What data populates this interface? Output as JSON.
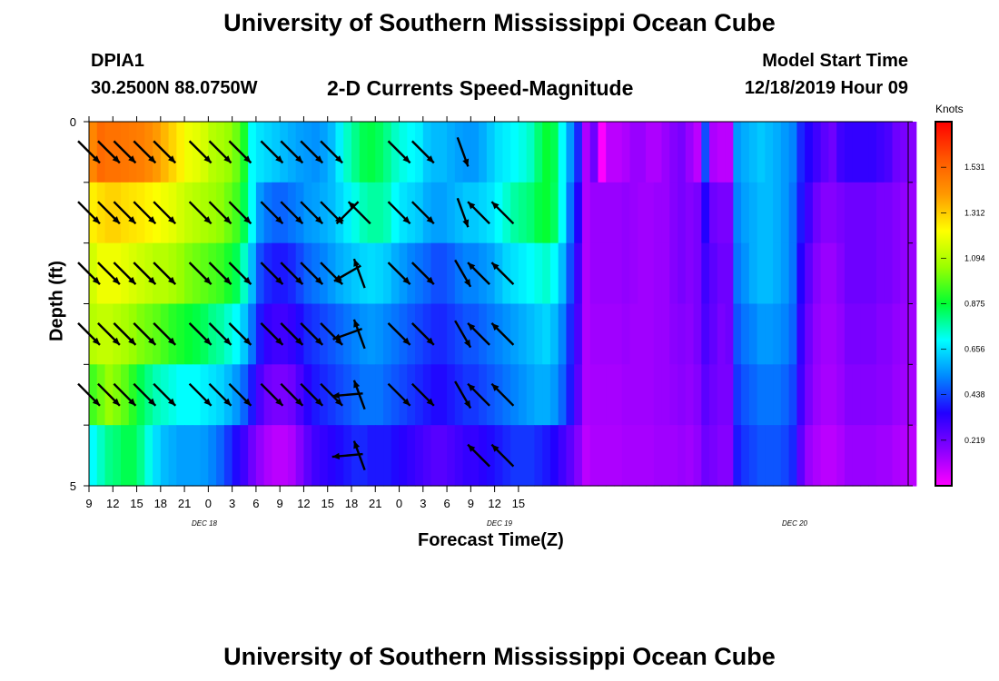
{
  "header": {
    "title": "University of Southern Mississippi Ocean Cube",
    "station": "DPIA1",
    "coords": "30.2500N 88.0750W",
    "subtitle": "2-D Currents Speed-Magnitude",
    "model_start_label": "Model Start Time",
    "model_start_value": "12/18/2019 Hour 09"
  },
  "footer": {
    "title": "University of Southern Mississippi Ocean Cube"
  },
  "chart_data": {
    "type": "heatmap",
    "title": "2-D Currents Speed-Magnitude",
    "xlabel": "Forecast Time(Z)",
    "ylabel": "Depth (ft)",
    "units_label": "Knots",
    "x_tick_labels": [
      "9",
      "12",
      "15",
      "18",
      "21",
      "0",
      "3",
      "6",
      "9",
      "12",
      "15",
      "18",
      "21",
      "0",
      "3",
      "6",
      "9",
      "12",
      "15"
    ],
    "date_labels": [
      "DEC 18",
      "DEC 19",
      "DEC 20"
    ],
    "y_tick_labels": [
      "0",
      "5"
    ],
    "ylim": [
      5,
      0
    ],
    "colorbar": {
      "labels": [
        "1.531",
        "1.312",
        "1.094",
        "0.875",
        "0.656",
        "0.438",
        "0.219"
      ],
      "values": [
        1.531,
        1.312,
        1.094,
        0.875,
        0.656,
        0.438,
        0.219
      ],
      "range": [
        0,
        1.75
      ],
      "colors": [
        "#ff00ff",
        "#8800ff",
        "#2200ff",
        "#0088ff",
        "#00ffff",
        "#00ff33",
        "#99ff00",
        "#ffff00",
        "#ff9900",
        "#ff5500",
        "#ff0000"
      ]
    },
    "hours": [
      9,
      10,
      11,
      12,
      13,
      14,
      15,
      16,
      17,
      18,
      19,
      20,
      21,
      22,
      23,
      24,
      25,
      26,
      27,
      28,
      29,
      30,
      31,
      32,
      33,
      34,
      35,
      36,
      37,
      38,
      39,
      40,
      41,
      42,
      43,
      44,
      45,
      46,
      47,
      48,
      49,
      50,
      51,
      52,
      53,
      54,
      55,
      56,
      57,
      58,
      59,
      60,
      61,
      62,
      63,
      64,
      65,
      66,
      67,
      68,
      69,
      70,
      71,
      72,
      73,
      74,
      75,
      76,
      77,
      78,
      79,
      80,
      81,
      82,
      83,
      84,
      85,
      86,
      87,
      88,
      89,
      90,
      91,
      92,
      93,
      94,
      95,
      96,
      97,
      98,
      99,
      100,
      101,
      102,
      103,
      104,
      105,
      106,
      107,
      108,
      109,
      110,
      111
    ],
    "depth_layers": [
      [
        1.45,
        1.52,
        1.5,
        1.5,
        1.49,
        1.48,
        1.47,
        1.44,
        1.4,
        1.35,
        1.3,
        1.25,
        1.2,
        1.18,
        1.15,
        1.1,
        1.08,
        1.05,
        1.0,
        0.9,
        0.7,
        0.66,
        0.64,
        0.62,
        0.6,
        0.58,
        0.56,
        0.55,
        0.54,
        0.56,
        0.6,
        0.68,
        0.75,
        0.8,
        0.85,
        0.86,
        0.84,
        0.8,
        0.75,
        0.72,
        0.7,
        0.68,
        0.62,
        0.6,
        0.6,
        0.58,
        0.56,
        0.55,
        0.55,
        0.58,
        0.62,
        0.66,
        0.68,
        0.7,
        0.72,
        0.75,
        0.82,
        0.88,
        0.85,
        0.7,
        0.55,
        0.4,
        0.12,
        0.22,
        0.0,
        0.1,
        0.1,
        0.12,
        0.15,
        0.15,
        0.12,
        0.12,
        0.15,
        0.18,
        0.2,
        0.15,
        0.1,
        0.45,
        0.12,
        0.1,
        0.1,
        0.55,
        0.58,
        0.6,
        0.62,
        0.6,
        0.58,
        0.55,
        0.52,
        0.4,
        0.35,
        0.3,
        0.25,
        0.22,
        0.3,
        0.32,
        0.32,
        0.32,
        0.32,
        0.3,
        0.28,
        0.22,
        0.2,
        0.18
      ],
      [
        1.25,
        1.28,
        1.3,
        1.3,
        1.28,
        1.27,
        1.26,
        1.24,
        1.22,
        1.2,
        1.18,
        1.15,
        1.12,
        1.1,
        1.08,
        1.06,
        1.04,
        1.0,
        0.95,
        0.85,
        0.7,
        0.55,
        0.5,
        0.48,
        0.48,
        0.5,
        0.52,
        0.55,
        0.56,
        0.58,
        0.6,
        0.64,
        0.68,
        0.72,
        0.76,
        0.78,
        0.78,
        0.76,
        0.7,
        0.66,
        0.64,
        0.62,
        0.58,
        0.56,
        0.56,
        0.58,
        0.6,
        0.62,
        0.62,
        0.64,
        0.66,
        0.7,
        0.74,
        0.78,
        0.8,
        0.82,
        0.86,
        0.88,
        0.84,
        0.7,
        0.5,
        0.35,
        0.12,
        0.15,
        0.15,
        0.15,
        0.15,
        0.16,
        0.15,
        0.14,
        0.14,
        0.15,
        0.15,
        0.18,
        0.2,
        0.18,
        0.2,
        0.35,
        0.22,
        0.2,
        0.2,
        0.52,
        0.56,
        0.58,
        0.6,
        0.6,
        0.58,
        0.55,
        0.5,
        0.38,
        0.3,
        0.22,
        0.18,
        0.18,
        0.2,
        0.22,
        0.22,
        0.22,
        0.22,
        0.2,
        0.2,
        0.18,
        0.16,
        0.15
      ],
      [
        1.15,
        1.2,
        1.2,
        1.2,
        1.18,
        1.16,
        1.14,
        1.12,
        1.1,
        1.1,
        1.08,
        1.05,
        1.02,
        1.0,
        0.98,
        0.96,
        0.94,
        0.9,
        0.85,
        0.75,
        0.6,
        0.45,
        0.4,
        0.38,
        0.38,
        0.4,
        0.44,
        0.48,
        0.5,
        0.52,
        0.55,
        0.58,
        0.6,
        0.62,
        0.64,
        0.65,
        0.64,
        0.62,
        0.58,
        0.55,
        0.52,
        0.5,
        0.48,
        0.45,
        0.45,
        0.47,
        0.5,
        0.52,
        0.52,
        0.54,
        0.56,
        0.6,
        0.64,
        0.66,
        0.68,
        0.7,
        0.72,
        0.74,
        0.7,
        0.6,
        0.45,
        0.3,
        0.12,
        0.15,
        0.15,
        0.15,
        0.15,
        0.16,
        0.15,
        0.14,
        0.14,
        0.15,
        0.15,
        0.18,
        0.2,
        0.18,
        0.2,
        0.3,
        0.25,
        0.22,
        0.22,
        0.5,
        0.54,
        0.58,
        0.6,
        0.6,
        0.58,
        0.55,
        0.5,
        0.35,
        0.25,
        0.18,
        0.15,
        0.15,
        0.18,
        0.22,
        0.22,
        0.22,
        0.22,
        0.2,
        0.2,
        0.18,
        0.16,
        0.15
      ],
      [
        1.1,
        1.12,
        1.12,
        1.1,
        1.08,
        1.05,
        1.02,
        1.0,
        0.98,
        0.95,
        0.92,
        0.9,
        0.88,
        0.86,
        0.84,
        0.8,
        0.78,
        0.74,
        0.7,
        0.62,
        0.5,
        0.38,
        0.32,
        0.3,
        0.3,
        0.32,
        0.36,
        0.4,
        0.42,
        0.44,
        0.46,
        0.48,
        0.5,
        0.52,
        0.54,
        0.55,
        0.54,
        0.52,
        0.5,
        0.48,
        0.46,
        0.44,
        0.42,
        0.4,
        0.4,
        0.42,
        0.44,
        0.46,
        0.46,
        0.48,
        0.5,
        0.52,
        0.54,
        0.56,
        0.58,
        0.6,
        0.62,
        0.64,
        0.6,
        0.52,
        0.4,
        0.28,
        0.12,
        0.14,
        0.14,
        0.14,
        0.14,
        0.15,
        0.14,
        0.14,
        0.14,
        0.15,
        0.15,
        0.17,
        0.18,
        0.17,
        0.2,
        0.28,
        0.24,
        0.2,
        0.22,
        0.46,
        0.5,
        0.52,
        0.55,
        0.55,
        0.54,
        0.52,
        0.48,
        0.32,
        0.22,
        0.16,
        0.14,
        0.14,
        0.16,
        0.2,
        0.2,
        0.2,
        0.2,
        0.18,
        0.18,
        0.16,
        0.15,
        0.14
      ],
      [
        0.95,
        1.0,
        1.05,
        1.02,
        0.98,
        0.92,
        0.85,
        0.8,
        0.76,
        0.74,
        0.72,
        0.7,
        0.7,
        0.7,
        0.68,
        0.66,
        0.64,
        0.6,
        0.55,
        0.48,
        0.38,
        0.28,
        0.22,
        0.2,
        0.2,
        0.22,
        0.28,
        0.34,
        0.38,
        0.4,
        0.42,
        0.44,
        0.46,
        0.48,
        0.5,
        0.5,
        0.5,
        0.48,
        0.46,
        0.44,
        0.42,
        0.4,
        0.38,
        0.36,
        0.36,
        0.38,
        0.4,
        0.42,
        0.42,
        0.44,
        0.46,
        0.48,
        0.5,
        0.52,
        0.54,
        0.56,
        0.58,
        0.58,
        0.55,
        0.48,
        0.38,
        0.25,
        0.12,
        0.13,
        0.13,
        0.13,
        0.13,
        0.14,
        0.14,
        0.14,
        0.14,
        0.15,
        0.15,
        0.16,
        0.17,
        0.16,
        0.18,
        0.25,
        0.22,
        0.2,
        0.2,
        0.42,
        0.46,
        0.48,
        0.5,
        0.5,
        0.5,
        0.48,
        0.44,
        0.3,
        0.2,
        0.15,
        0.13,
        0.13,
        0.15,
        0.18,
        0.18,
        0.18,
        0.18,
        0.17,
        0.17,
        0.15,
        0.14,
        0.13
      ],
      [
        0.7,
        0.75,
        0.8,
        0.82,
        0.85,
        0.85,
        0.8,
        0.72,
        0.65,
        0.6,
        0.58,
        0.56,
        0.56,
        0.56,
        0.55,
        0.52,
        0.48,
        0.42,
        0.36,
        0.3,
        0.22,
        0.16,
        0.12,
        0.1,
        0.1,
        0.12,
        0.18,
        0.25,
        0.3,
        0.32,
        0.34,
        0.36,
        0.38,
        0.4,
        0.4,
        0.38,
        0.38,
        0.38,
        0.36,
        0.34,
        0.32,
        0.3,
        0.28,
        0.26,
        0.26,
        0.28,
        0.3,
        0.32,
        0.32,
        0.34,
        0.36,
        0.38,
        0.4,
        0.42,
        0.42,
        0.42,
        0.4,
        0.38,
        0.35,
        0.3,
        0.25,
        0.18,
        0.1,
        0.12,
        0.12,
        0.12,
        0.12,
        0.13,
        0.13,
        0.13,
        0.13,
        0.14,
        0.14,
        0.14,
        0.15,
        0.14,
        0.16,
        0.22,
        0.2,
        0.18,
        0.18,
        0.38,
        0.42,
        0.44,
        0.46,
        0.46,
        0.46,
        0.44,
        0.4,
        0.25,
        0.15,
        0.12,
        0.1,
        0.1,
        0.12,
        0.15,
        0.15,
        0.15,
        0.15,
        0.14,
        0.14,
        0.12,
        0.11,
        0.1
      ]
    ],
    "arrow_rows": [
      {
        "depth_row": 0,
        "arrows": [
          [
            9,
            -45
          ],
          [
            11.5,
            -45
          ],
          [
            13.5,
            -45
          ],
          [
            16,
            -45
          ],
          [
            18.5,
            -45
          ],
          [
            23,
            -45
          ],
          [
            25.5,
            -45
          ],
          [
            28,
            -45
          ],
          [
            32,
            -45
          ],
          [
            34.5,
            -45
          ],
          [
            37,
            -45
          ],
          [
            39.5,
            -45
          ],
          [
            48,
            -45
          ],
          [
            51,
            -45
          ],
          [
            56,
            -70
          ]
        ]
      },
      {
        "depth_row": 1,
        "arrows": [
          [
            9,
            -45
          ],
          [
            11.5,
            -45
          ],
          [
            13.5,
            -45
          ],
          [
            16,
            -45
          ],
          [
            18.5,
            -45
          ],
          [
            23,
            -45
          ],
          [
            25.5,
            -45
          ],
          [
            28,
            -45
          ],
          [
            32,
            -45
          ],
          [
            34.5,
            -45
          ],
          [
            37,
            -45
          ],
          [
            39.5,
            -45
          ],
          [
            41.5,
            -135
          ],
          [
            43,
            135
          ],
          [
            48,
            -45
          ],
          [
            51,
            -45
          ],
          [
            56,
            -70
          ],
          [
            58,
            135
          ],
          [
            61,
            135
          ]
        ]
      },
      {
        "depth_row": 2,
        "arrows": [
          [
            9,
            -45
          ],
          [
            11.5,
            -45
          ],
          [
            13.5,
            -45
          ],
          [
            16,
            -45
          ],
          [
            18.5,
            -45
          ],
          [
            23,
            -45
          ],
          [
            25.5,
            -45
          ],
          [
            28,
            -45
          ],
          [
            32,
            -45
          ],
          [
            34.5,
            -45
          ],
          [
            37,
            -45
          ],
          [
            39.5,
            -45
          ],
          [
            41.5,
            -150
          ],
          [
            43,
            110
          ],
          [
            48,
            -45
          ],
          [
            51,
            -45
          ],
          [
            56,
            -60
          ],
          [
            58,
            135
          ],
          [
            61,
            135
          ]
        ]
      },
      {
        "depth_row": 3,
        "arrows": [
          [
            9,
            -45
          ],
          [
            11.5,
            -45
          ],
          [
            13.5,
            -45
          ],
          [
            16,
            -45
          ],
          [
            18.5,
            -45
          ],
          [
            23,
            -45
          ],
          [
            25.5,
            -45
          ],
          [
            28,
            -45
          ],
          [
            32,
            -45
          ],
          [
            34.5,
            -45
          ],
          [
            37,
            -45
          ],
          [
            39.5,
            -45
          ],
          [
            41.5,
            -160
          ],
          [
            43,
            110
          ],
          [
            48,
            -45
          ],
          [
            51,
            -45
          ],
          [
            56,
            -60
          ],
          [
            58,
            135
          ],
          [
            61,
            135
          ]
        ]
      },
      {
        "depth_row": 4,
        "arrows": [
          [
            9,
            -45
          ],
          [
            11.5,
            -45
          ],
          [
            13.5,
            -45
          ],
          [
            16,
            -45
          ],
          [
            18.5,
            -45
          ],
          [
            23,
            -45
          ],
          [
            25.5,
            -45
          ],
          [
            28,
            -45
          ],
          [
            32,
            -45
          ],
          [
            34.5,
            -45
          ],
          [
            37,
            -45
          ],
          [
            39.5,
            -45
          ],
          [
            41.5,
            -175
          ],
          [
            43,
            110
          ],
          [
            48,
            -45
          ],
          [
            51,
            -45
          ],
          [
            56,
            -60
          ],
          [
            58,
            135
          ],
          [
            61,
            135
          ]
        ]
      },
      {
        "depth_row": 5,
        "arrows": [
          [
            41.5,
            -175
          ],
          [
            43,
            110
          ],
          [
            58,
            135
          ],
          [
            61,
            135
          ]
        ]
      }
    ]
  }
}
